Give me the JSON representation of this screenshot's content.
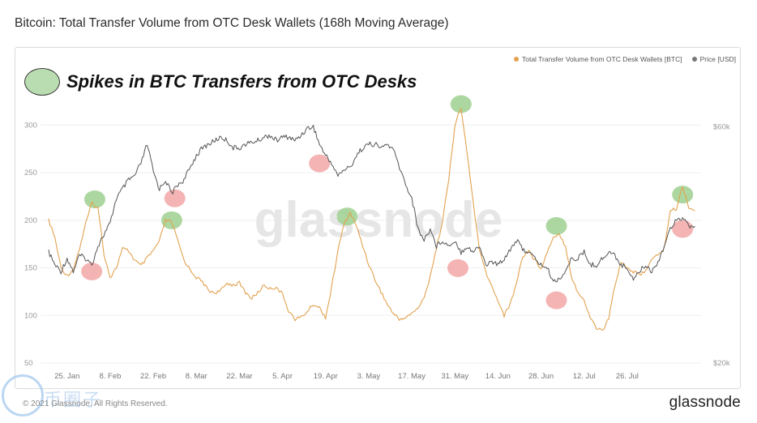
{
  "header": {
    "title": "Bitcoin: Total Transfer Volume from OTC Desk Wallets (168h Moving Average)"
  },
  "annotation": {
    "text": "Spikes in BTC Transfers from OTC Desks"
  },
  "footer": {
    "copyright": "© 2021 Glassnode. All Rights Reserved.",
    "logo": "glassnode"
  },
  "watermark": {
    "center": "glassnode",
    "corner": "币圈子"
  },
  "colors": {
    "volume": "#e2a24f",
    "price": "#555555",
    "spike_green": "#9fd08f",
    "spike_red": "#f3a7a7",
    "grid": "#efefef"
  },
  "chart_data": {
    "type": "line",
    "title": "Bitcoin: Total Transfer Volume from OTC Desk Wallets (168h Moving Average)",
    "x_ticks": [
      "25. Jan",
      "8. Feb",
      "22. Feb",
      "8. Mar",
      "22. Mar",
      "5. Apr",
      "19. Apr",
      "3. May",
      "17. May",
      "31. May",
      "14. Jun",
      "28. Jun",
      "12. Jul",
      "26. Jul"
    ],
    "y_left_ticks": [
      "300",
      "250",
      "200",
      "150",
      "100",
      "50"
    ],
    "y_left_range": [
      50,
      325
    ],
    "y_right_ticks": [
      "$60k",
      "$20k"
    ],
    "y_right_range": [
      20000,
      70000
    ],
    "y_right_scale": "log",
    "legend_position": "top-right",
    "series": [
      {
        "name": "Total Transfer Volume from OTC Desk Wallets [BTC]",
        "axis": "left",
        "x_days": [
          0,
          2,
          4,
          6,
          8,
          10,
          12,
          14,
          16,
          18,
          20,
          22,
          24,
          26,
          28,
          30,
          32,
          34,
          36,
          38,
          40,
          42,
          44,
          46,
          48,
          50,
          52,
          54,
          56,
          58,
          60,
          62,
          64,
          66,
          68,
          70,
          72,
          74,
          76,
          78,
          80,
          82,
          84,
          86,
          88,
          90,
          92,
          94,
          96,
          98,
          100,
          102,
          104,
          106,
          108,
          110,
          112,
          114,
          116,
          118,
          120,
          122,
          124,
          126,
          128,
          130,
          132,
          134,
          136,
          138,
          140,
          142,
          144,
          146,
          148,
          150,
          152,
          154,
          156,
          158,
          160,
          162,
          164,
          166,
          168,
          170,
          172,
          174,
          176,
          178,
          180,
          182,
          184,
          186,
          188,
          190,
          192,
          194,
          196,
          198,
          200,
          202,
          204,
          206,
          208,
          210
        ],
        "values": [
          200,
          182,
          150,
          142,
          148,
          170,
          196,
          218,
          213,
          165,
          140,
          150,
          170,
          168,
          158,
          152,
          160,
          168,
          178,
          200,
          198,
          178,
          158,
          148,
          140,
          135,
          126,
          124,
          126,
          134,
          132,
          134,
          124,
          118,
          124,
          132,
          128,
          130,
          122,
          105,
          96,
          98,
          104,
          112,
          108,
          98,
          130,
          168,
          196,
          208,
          194,
          174,
          154,
          138,
          125,
          112,
          102,
          96,
          98,
          102,
          108,
          118,
          142,
          170,
          200,
          242,
          300,
          318,
          270,
          218,
          168,
          146,
          130,
          116,
          100,
          112,
          134,
          162,
          168,
          158,
          150,
          166,
          183,
          186,
          172,
          140,
          124,
          115,
          98,
          87,
          84,
          97,
          132,
          157,
          150,
          146,
          142,
          148,
          158,
          164,
          170,
          210,
          212,
          236,
          214,
          210
        ]
      },
      {
        "name": "Price [USD]",
        "axis": "right",
        "x_days": [
          0,
          2,
          4,
          6,
          8,
          10,
          12,
          14,
          16,
          18,
          20,
          22,
          24,
          26,
          28,
          30,
          32,
          34,
          36,
          38,
          40,
          42,
          44,
          46,
          48,
          50,
          52,
          54,
          56,
          58,
          60,
          62,
          64,
          66,
          68,
          70,
          72,
          74,
          76,
          78,
          80,
          82,
          84,
          86,
          88,
          90,
          92,
          94,
          96,
          98,
          100,
          102,
          104,
          106,
          108,
          110,
          112,
          114,
          116,
          118,
          120,
          122,
          124,
          126,
          128,
          130,
          132,
          134,
          136,
          138,
          140,
          142,
          144,
          146,
          148,
          150,
          152,
          154,
          156,
          158,
          160,
          162,
          164,
          166,
          168,
          170,
          172,
          174,
          176,
          178,
          180,
          182,
          184,
          186,
          188,
          190,
          192,
          194,
          196,
          198,
          200,
          202,
          204,
          206,
          208,
          210
        ],
        "values": [
          34000,
          32000,
          31000,
          33000,
          31000,
          33500,
          33000,
          32000,
          35000,
          37000,
          39000,
          44000,
          46000,
          48000,
          49000,
          52000,
          57000,
          50000,
          46000,
          48000,
          45000,
          47000,
          48000,
          51000,
          54000,
          56000,
          57000,
          58000,
          59000,
          58000,
          56000,
          56000,
          57000,
          57500,
          58000,
          59000,
          59500,
          58000,
          59000,
          59000,
          58000,
          59500,
          61500,
          62000,
          57000,
          54000,
          52000,
          49000,
          50500,
          51000,
          54000,
          56000,
          57000,
          57000,
          56000,
          57000,
          55500,
          51000,
          47000,
          44000,
          38000,
          36000,
          38000,
          35000,
          36000,
          35000,
          36000,
          34000,
          35000,
          34000,
          35000,
          32000,
          32500,
          32000,
          33000,
          34500,
          36000,
          34500,
          34000,
          33000,
          32000,
          31500,
          29500,
          30000,
          31000,
          33000,
          33000,
          34000,
          32000,
          32000,
          33000,
          34000,
          33500,
          32000,
          31500,
          30000,
          31000,
          32000,
          31000,
          32500,
          35000,
          38000,
          40000,
          40000,
          38500,
          38500
        ]
      }
    ],
    "highlights": {
      "green_volume_spikes": [
        {
          "x_day": 15,
          "value": 222
        },
        {
          "x_day": 40,
          "value": 200
        },
        {
          "x_day": 97,
          "value": 204
        },
        {
          "x_day": 134,
          "value": 322
        },
        {
          "x_day": 165,
          "value": 194
        },
        {
          "x_day": 206,
          "value": 227
        }
      ],
      "red_price_points": [
        {
          "x_day": 14,
          "price": 31000
        },
        {
          "x_day": 41,
          "price": 44000
        },
        {
          "x_day": 88,
          "price": 52000
        },
        {
          "x_day": 133,
          "price": 31500
        },
        {
          "x_day": 165,
          "price": 27000
        },
        {
          "x_day": 206,
          "price": 38000
        }
      ]
    }
  }
}
